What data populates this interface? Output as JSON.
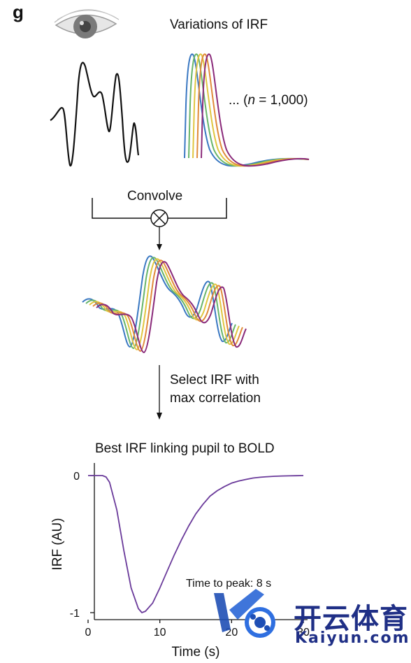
{
  "panel": {
    "letter": "g"
  },
  "top": {
    "variations_title": "Variations of IRF",
    "n_prefix": "... (",
    "n_var": "n",
    "n_suffix": " = 1,000)"
  },
  "convolve": {
    "label": "Convolve"
  },
  "select": {
    "line1": "Select IRF with",
    "line2": "max correlation"
  },
  "result": {
    "title": "Best IRF linking pupil to BOLD",
    "annotation": "Time to peak: 8 s"
  },
  "colors": {
    "blue": "#3a78c2",
    "green": "#67b56a",
    "yellow": "#e0c640",
    "orange": "#e08a3a",
    "purple": "#8a2a7a",
    "result_line": "#6a3a9a",
    "watermark_blue": "#1f4fb5"
  },
  "chart_data": {
    "type": "line",
    "title": "Best IRF linking pupil to BOLD",
    "xlabel": "Time (s)",
    "ylabel": "IRF (AU)",
    "xlim": [
      0,
      30
    ],
    "ylim": [
      -1.03,
      0.03
    ],
    "xticks": [
      0,
      10,
      20,
      30
    ],
    "xtick_labels": [
      "0",
      "10",
      "20",
      "30"
    ],
    "yticks": [
      0,
      -1
    ],
    "ytick_labels": [
      "0",
      "-1"
    ],
    "series": [
      {
        "x": [
          0,
          2,
          2.5,
          3,
          4,
          5,
          6,
          7,
          7.5,
          8,
          9,
          10,
          11,
          12,
          13,
          14,
          15,
          16,
          17,
          18,
          19,
          20,
          21,
          22,
          23,
          24,
          25,
          26,
          27,
          28,
          29,
          30
        ],
        "values": [
          0,
          0,
          -0.01,
          -0.05,
          -0.25,
          -0.55,
          -0.82,
          -0.97,
          -1.0,
          -0.99,
          -0.93,
          -0.82,
          -0.7,
          -0.58,
          -0.47,
          -0.37,
          -0.28,
          -0.21,
          -0.15,
          -0.11,
          -0.08,
          -0.055,
          -0.04,
          -0.028,
          -0.018,
          -0.012,
          -0.008,
          -0.005,
          -0.003,
          -0.002,
          -0.001,
          0
        ]
      }
    ],
    "annotation": "Time to peak: 8 s",
    "grid": false
  },
  "watermark": {
    "brand_cn": "开云体育",
    "brand_en": "Kaiyun.com"
  }
}
